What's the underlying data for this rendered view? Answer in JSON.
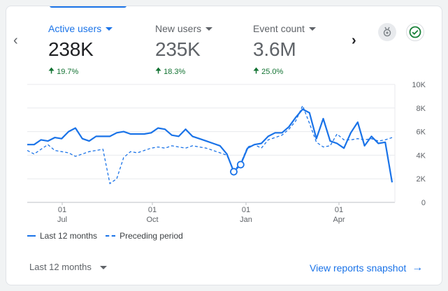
{
  "metrics": [
    {
      "label": "Active users",
      "value": "238K",
      "change": "19.7%",
      "active": true
    },
    {
      "label": "New users",
      "value": "235K",
      "change": "18.3%",
      "active": false
    },
    {
      "label": "Event count",
      "value": "3.6M",
      "change": "25.0%",
      "active": false
    }
  ],
  "icons": {
    "prev": "chevron-left-icon",
    "next": "chevron-right-icon",
    "insight": "insight-badge-icon",
    "check": "check-circle-icon"
  },
  "colors": {
    "accent": "#1a73e8",
    "positive": "#137333"
  },
  "chart_data": {
    "type": "line",
    "x_ticks": [
      {
        "top": "01",
        "bottom": "Jul"
      },
      {
        "top": "01",
        "bottom": "Oct"
      },
      {
        "top": "01",
        "bottom": "Jan"
      },
      {
        "top": "01",
        "bottom": "Apr"
      }
    ],
    "y_ticks": [
      "10K",
      "8K",
      "6K",
      "4K",
      "2K",
      "0"
    ],
    "ylim": [
      0,
      10000
    ],
    "grid": true,
    "legend_position": "bottom-left",
    "series": [
      {
        "name": "Last 12 months",
        "style": "solid",
        "values": [
          4900,
          4900,
          5300,
          5200,
          5500,
          5400,
          6000,
          6300,
          5400,
          5200,
          5600,
          5600,
          5600,
          5900,
          6000,
          5800,
          5800,
          5800,
          5900,
          6300,
          6200,
          5700,
          5600,
          6200,
          5600,
          5400,
          5200,
          5000,
          4800,
          4100,
          2600,
          3200,
          4600,
          4900,
          5000,
          5600,
          5900,
          5900,
          6400,
          7200,
          7900,
          7600,
          5400,
          7100,
          5200,
          5000,
          4600,
          5900,
          6800,
          4800,
          5600,
          5000,
          5100,
          1700
        ],
        "markers": [
          30,
          31
        ]
      },
      {
        "name": "Preceding period",
        "style": "dashed",
        "values": [
          4400,
          4100,
          4500,
          4900,
          4400,
          4300,
          4200,
          3900,
          4100,
          4300,
          4400,
          4500,
          1600,
          2000,
          3800,
          4300,
          4200,
          4400,
          4600,
          4700,
          4600,
          4800,
          4700,
          4600,
          4800,
          4700,
          4600,
          4400,
          4200,
          4000,
          2700,
          3300,
          4700,
          4900,
          4600,
          5300,
          5500,
          5700,
          6200,
          6900,
          8200,
          6700,
          5100,
          4700,
          4800,
          5800,
          5300,
          5300,
          5400,
          5300,
          5400,
          5200,
          5300,
          5500
        ]
      }
    ]
  },
  "legend": [
    {
      "label": "Last 12 months",
      "style": "solid"
    },
    {
      "label": "Preceding period",
      "style": "dashed"
    }
  ],
  "footer": {
    "range_label": "Last 12 months",
    "snapshot_link": "View reports snapshot"
  }
}
